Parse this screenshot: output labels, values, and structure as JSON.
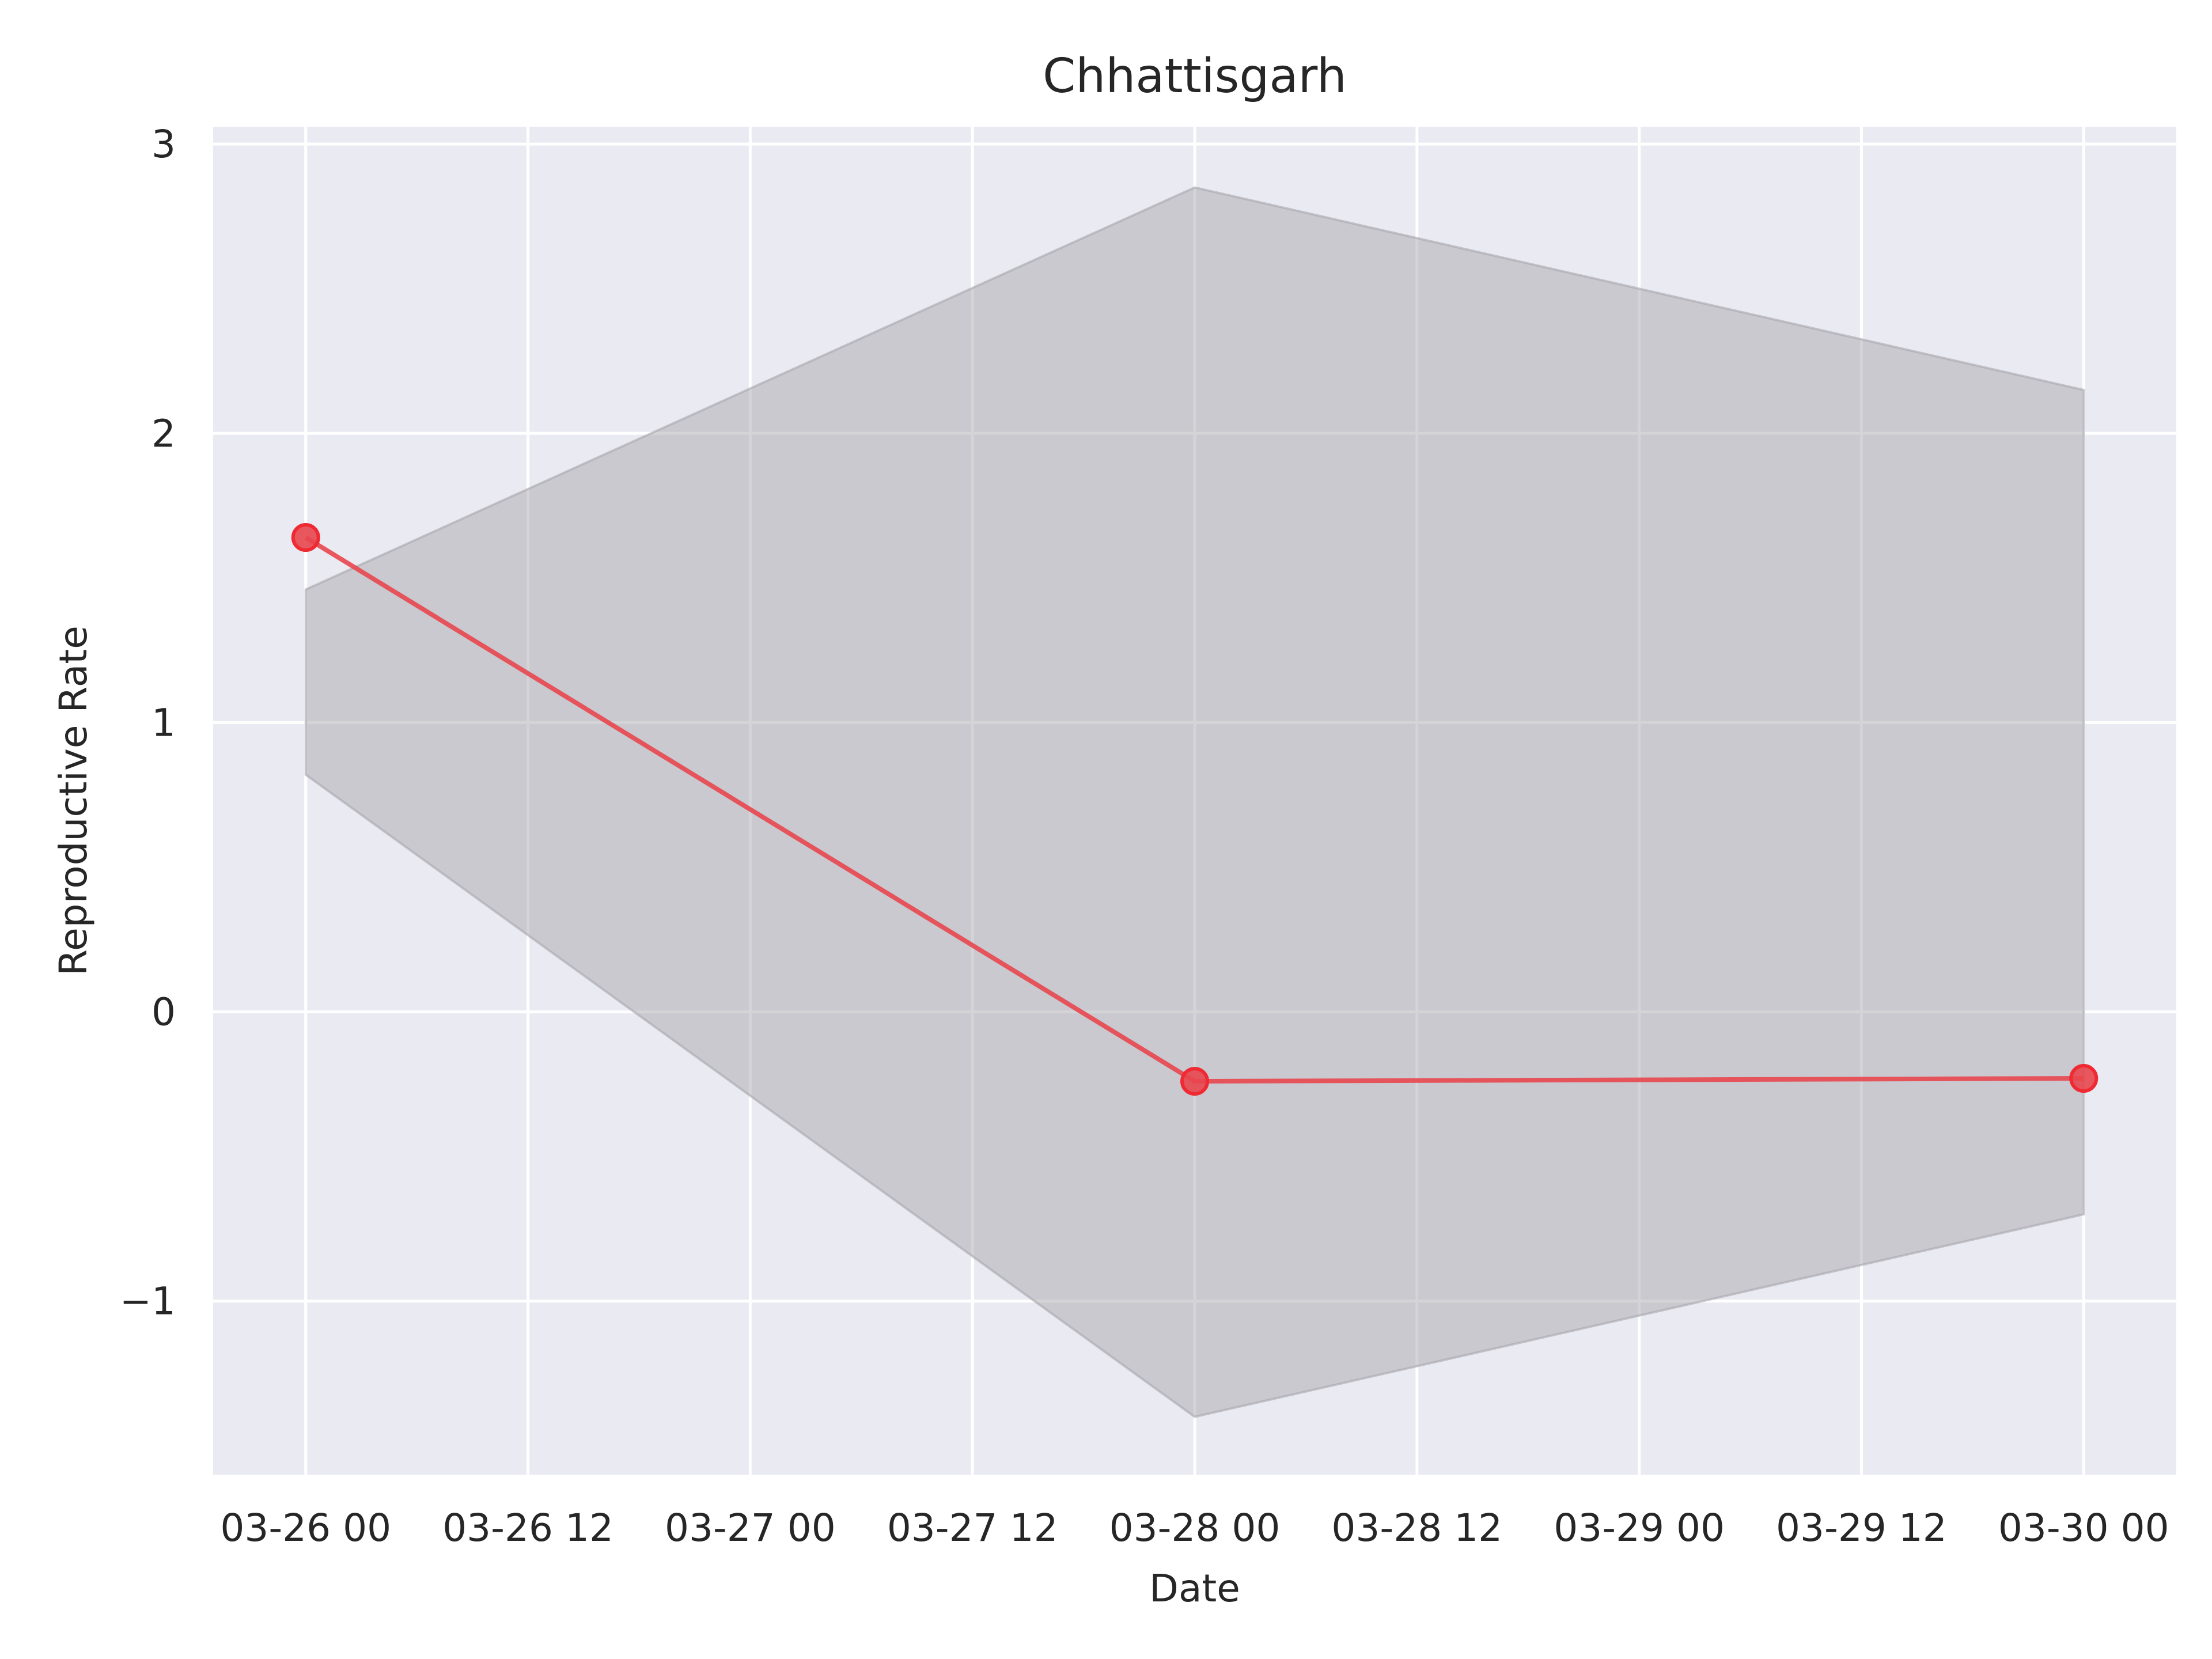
{
  "chart_data": {
    "type": "line",
    "title": "Chhattisgarh",
    "xlabel": "Date",
    "ylabel": "Reproductive Rate",
    "x_type": "datetime",
    "xlim": [
      "2020-03-25 19:00",
      "2020-03-30 05:00"
    ],
    "ylim": [
      -1.6,
      3.06
    ],
    "x_ticks": [
      {
        "value": "2020-03-26 00:00",
        "label": "03-26 00"
      },
      {
        "value": "2020-03-26 12:00",
        "label": "03-26 12"
      },
      {
        "value": "2020-03-27 00:00",
        "label": "03-27 00"
      },
      {
        "value": "2020-03-27 12:00",
        "label": "03-27 12"
      },
      {
        "value": "2020-03-28 00:00",
        "label": "03-28 00"
      },
      {
        "value": "2020-03-28 12:00",
        "label": "03-28 12"
      },
      {
        "value": "2020-03-29 00:00",
        "label": "03-29 00"
      },
      {
        "value": "2020-03-29 12:00",
        "label": "03-29 12"
      },
      {
        "value": "2020-03-30 00:00",
        "label": "03-30 00"
      }
    ],
    "y_ticks": [
      {
        "value": -1,
        "label": "−1"
      },
      {
        "value": 0,
        "label": "0"
      },
      {
        "value": 1,
        "label": "1"
      },
      {
        "value": 2,
        "label": "2"
      },
      {
        "value": 3,
        "label": "3"
      }
    ],
    "grid": true,
    "series": [
      {
        "x": [
          "2020-03-26 00:00",
          "2020-03-28 00:00",
          "2020-03-30 00:00"
        ],
        "y": [
          1.64,
          -0.24,
          -0.23
        ],
        "lower": [
          0.82,
          -1.4,
          -0.7
        ],
        "upper": [
          1.46,
          2.85,
          2.15
        ],
        "color": "#e8464e",
        "band_color": "#a9a7ae",
        "markers": true
      }
    ]
  }
}
